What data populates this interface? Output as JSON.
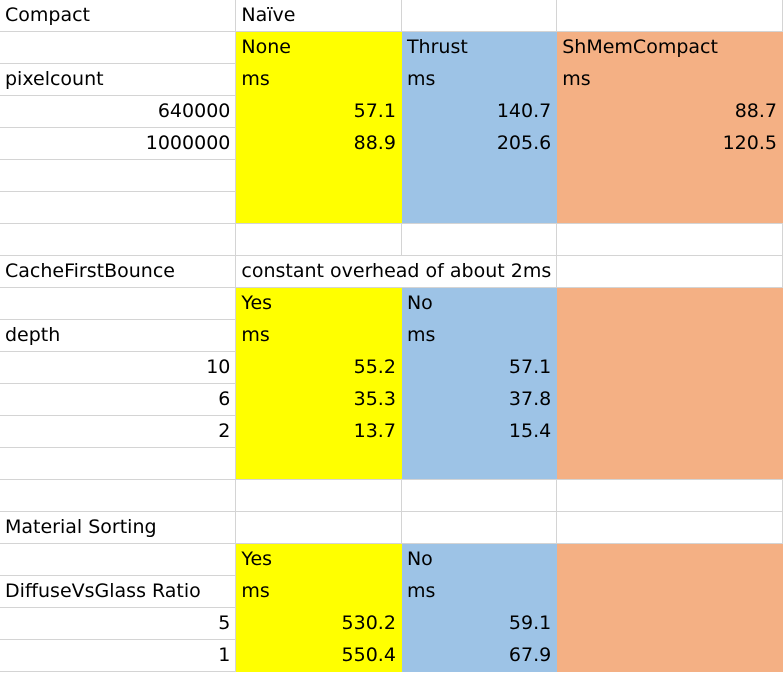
{
  "colors": {
    "yellow": "#ffff00",
    "blue": "#9dc3e6",
    "orange": "#f4b084",
    "gridline": "#d4d4d4"
  },
  "compact": {
    "title": "Compact",
    "col_a_header": "Naïve",
    "series": [
      "None",
      "Thrust",
      "ShMemCompact"
    ],
    "row_label": "pixelcount",
    "unit": "ms",
    "rows": [
      {
        "key": "640000",
        "values": [
          "57.1",
          "140.7",
          "88.7"
        ]
      },
      {
        "key": "1000000",
        "values": [
          "88.9",
          "205.6",
          "120.5"
        ]
      }
    ]
  },
  "cache": {
    "title": "CacheFirstBounce",
    "note": "constant overhead of about 2ms",
    "series": [
      "Yes",
      "No"
    ],
    "row_label": "depth",
    "unit": "ms",
    "rows": [
      {
        "key": "10",
        "values": [
          "55.2",
          "57.1"
        ]
      },
      {
        "key": "6",
        "values": [
          "35.3",
          "37.8"
        ]
      },
      {
        "key": "2",
        "values": [
          "13.7",
          "15.4"
        ]
      }
    ]
  },
  "material": {
    "title": "Material Sorting",
    "series": [
      "Yes",
      "No"
    ],
    "row_label": "DiffuseVsGlass Ratio",
    "unit": "ms",
    "rows": [
      {
        "key": "5",
        "values": [
          "530.2",
          "59.1"
        ]
      },
      {
        "key": "1",
        "values": [
          "550.4",
          "67.9"
        ]
      }
    ]
  }
}
